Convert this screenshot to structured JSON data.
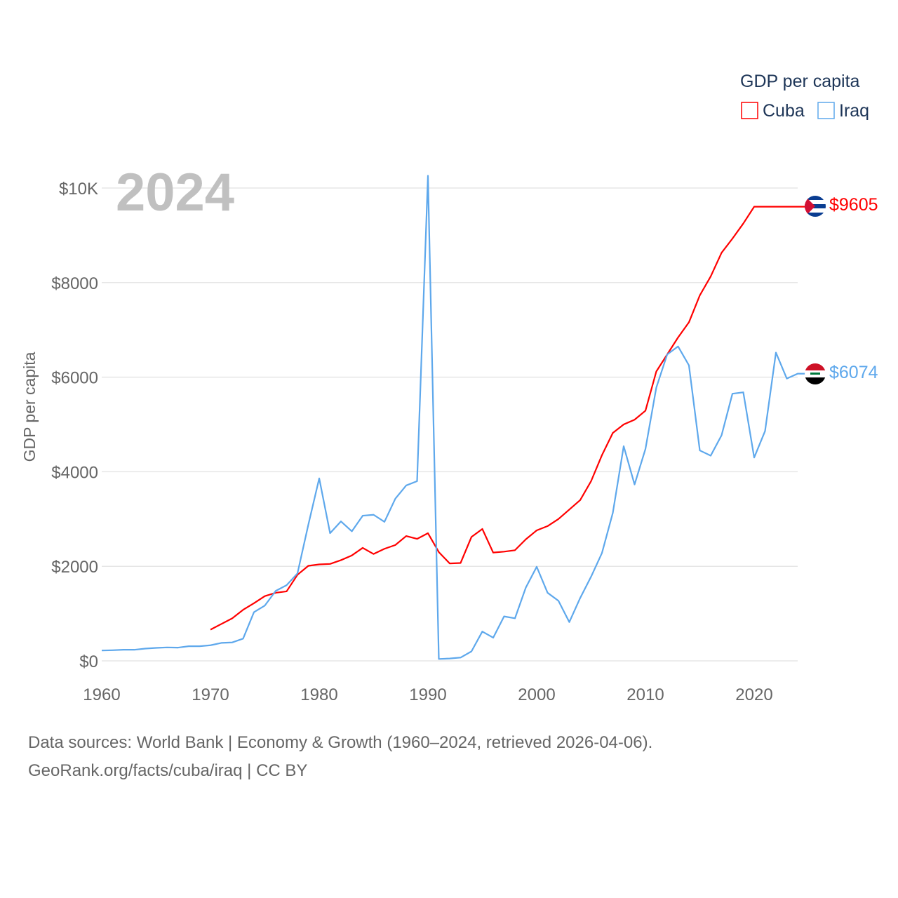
{
  "chart_data": {
    "type": "line",
    "title": "GDP per capita",
    "year_label": "2024",
    "xlabel": "",
    "ylabel": "GDP per capita",
    "xlim": [
      1960,
      2024
    ],
    "ylim": [
      0,
      10000
    ],
    "x_ticks": [
      "1960",
      "1970",
      "1980",
      "1990",
      "2000",
      "2010",
      "2020"
    ],
    "y_ticks": [
      {
        "v": 0,
        "label": "$0"
      },
      {
        "v": 2000,
        "label": "$2000"
      },
      {
        "v": 4000,
        "label": "$4000"
      },
      {
        "v": 6000,
        "label": "$6000"
      },
      {
        "v": 8000,
        "label": "$8000"
      },
      {
        "v": 10000,
        "label": "$10K"
      }
    ],
    "grid": true,
    "legend_placement": "top-right",
    "series": [
      {
        "name": "Cuba",
        "color": "#ff0000",
        "end_label": "$9605",
        "start_year": 1970,
        "values": [
          660,
          780,
          900,
          1080,
          1220,
          1370,
          1440,
          1470,
          1820,
          2010,
          2040,
          2050,
          2130,
          2230,
          2390,
          2260,
          2370,
          2450,
          2640,
          2580,
          2700,
          2300,
          2060,
          2070,
          2620,
          2790,
          2290,
          2310,
          2340,
          2570,
          2760,
          2850,
          3000,
          3200,
          3400,
          3800,
          4350,
          4820,
          5000,
          5100,
          5290,
          6120,
          6480,
          6840,
          7160,
          7730,
          8130,
          8630,
          8930,
          9250,
          9605,
          9605,
          9605,
          9605,
          9605
        ]
      },
      {
        "name": "Iraq",
        "color": "#5ea8ec",
        "end_label": "$6074",
        "start_year": 1960,
        "values": [
          220,
          225,
          235,
          235,
          260,
          275,
          285,
          280,
          310,
          310,
          330,
          380,
          390,
          470,
          1030,
          1170,
          1480,
          1600,
          1850,
          2880,
          3860,
          2700,
          2950,
          2740,
          3070,
          3090,
          2940,
          3430,
          3710,
          3800,
          10260,
          40,
          50,
          70,
          200,
          620,
          490,
          940,
          900,
          1550,
          1990,
          1440,
          1270,
          820,
          1330,
          1780,
          2280,
          3130,
          4540,
          3730,
          4480,
          5780,
          6480,
          6650,
          6250,
          4450,
          4340,
          4770,
          5650,
          5680,
          4300,
          4860,
          6520,
          5970,
          6074
        ]
      }
    ]
  },
  "footer": {
    "line1": "Data sources: World Bank | Economy & Growth (1960–2024, retrieved 2026-04-06).",
    "line2": "GeoRank.org/facts/cuba/iraq | CC BY"
  }
}
